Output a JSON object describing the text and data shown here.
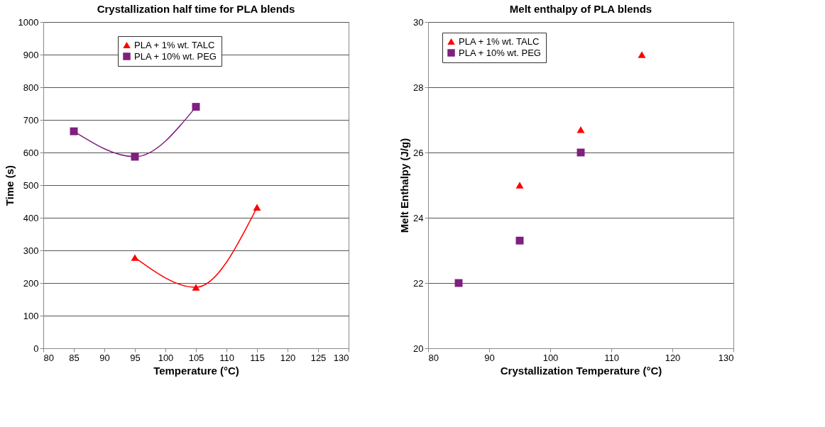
{
  "chart_data": [
    {
      "type": "line",
      "title": "Crystallization half time for PLA blends",
      "xlabel": "Temperature (°C)",
      "ylabel": "Time (s)",
      "xlim": [
        80,
        130
      ],
      "xticks": [
        80,
        85,
        90,
        95,
        100,
        105,
        110,
        115,
        120,
        125,
        130
      ],
      "ylim": [
        0,
        1000
      ],
      "yticks": [
        0,
        100,
        200,
        300,
        400,
        500,
        600,
        700,
        800,
        900,
        1000
      ],
      "grid": "y",
      "legend": "top",
      "series": [
        {
          "name": "PLA + 1% wt. TALC",
          "color": "#ff0000",
          "marker": "triangle",
          "line_style": "solid",
          "x": [
            95,
            105,
            115
          ],
          "values": [
            278,
            187,
            432
          ]
        },
        {
          "name": "PLA + 10% wt. PEG",
          "color": "#7f1f7f",
          "marker": "square",
          "line_style": "solid",
          "x": [
            85,
            95,
            105
          ],
          "values": [
            665,
            587,
            740
          ]
        }
      ]
    },
    {
      "type": "scatter",
      "title": "Melt enthalpy of PLA blends",
      "xlabel": "Crystallization Temperature (°C)",
      "ylabel": "Melt Enthalpy (J/g)",
      "xlim": [
        80,
        130
      ],
      "xticks": [
        80,
        90,
        100,
        110,
        120,
        130
      ],
      "ylim": [
        20,
        30
      ],
      "yticks": [
        20,
        22,
        24,
        26,
        28,
        30
      ],
      "grid": "y",
      "legend": "top left",
      "series": [
        {
          "name": "PLA + 1% wt. TALC",
          "color": "#ff0000",
          "marker": "triangle",
          "x": [
            95,
            105,
            115
          ],
          "values": [
            25.0,
            26.7,
            29.0
          ]
        },
        {
          "name": "PLA + 10% wt. PEG",
          "color": "#7f1f7f",
          "marker": "square",
          "x": [
            85,
            95,
            105
          ],
          "values": [
            22.0,
            23.3,
            26.0
          ]
        }
      ]
    }
  ]
}
